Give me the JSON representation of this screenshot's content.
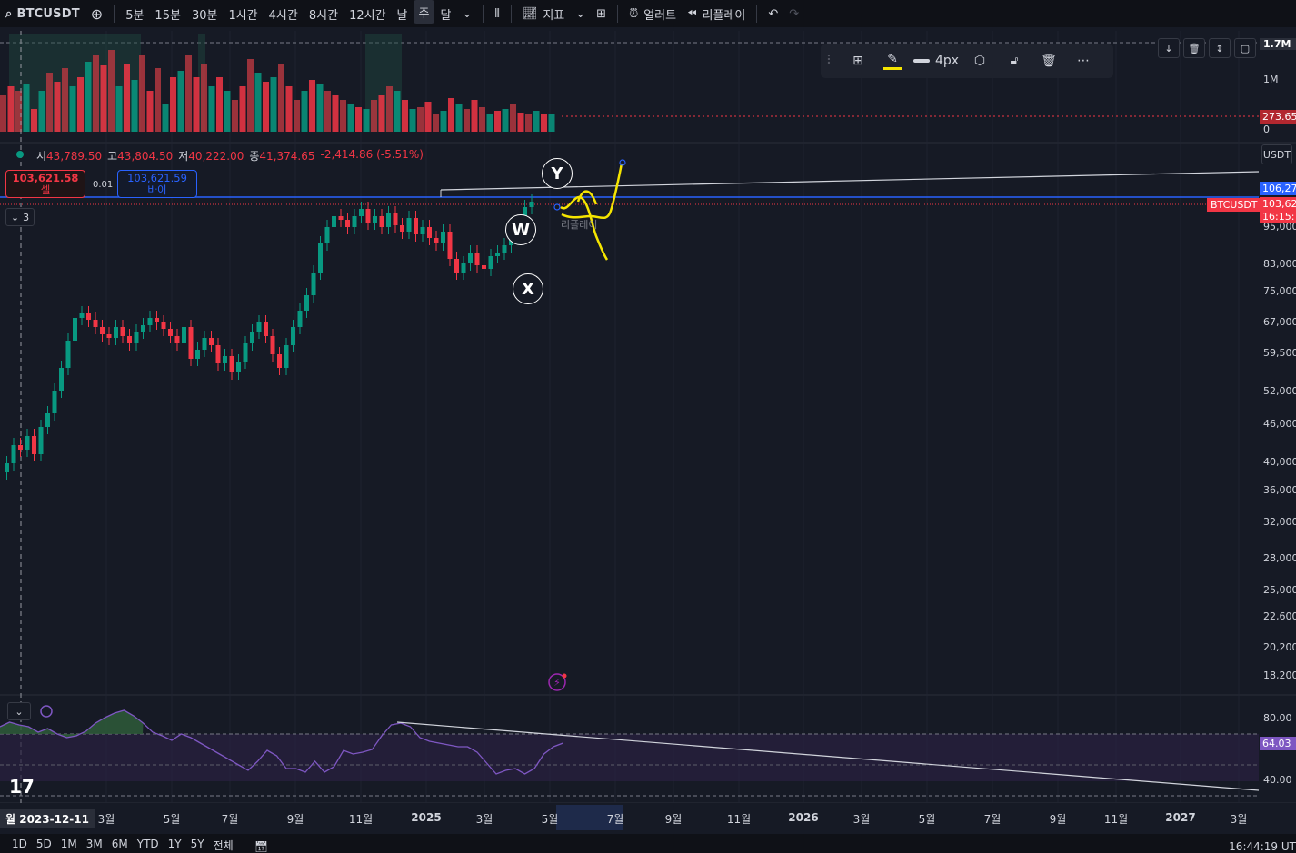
{
  "toolbar": {
    "symbol": "BTCUSDT",
    "intervals": [
      "5분",
      "15분",
      "30분",
      "1시간",
      "4시간",
      "8시간",
      "12시간",
      "날",
      "주",
      "달"
    ],
    "active_interval": "주",
    "indicators_label": "지표",
    "alert_label": "얼러트",
    "replay_label": "리플레이"
  },
  "legend": {
    "open_key": "시",
    "open": "43,789.50",
    "high_key": "고",
    "high": "43,804.50",
    "low_key": "저",
    "low": "40,222.00",
    "close_key": "종",
    "close": "41,374.65",
    "change": "-2,414.86 (-5.51%)"
  },
  "trade": {
    "sell_price": "103,621.58",
    "sell_label": "셀",
    "buy_price": "103,621.59",
    "buy_label": "바이",
    "spread": "0.01"
  },
  "drawing_toolbar": {
    "width_label": "4px"
  },
  "price_axis": {
    "currency": "USDT",
    "volume_labels": [
      "1.7M",
      "1M",
      "0"
    ],
    "volume_current": "273.65",
    "labels": [
      "95,000",
      "83,000",
      "75,000",
      "67,000",
      "59,500",
      "52,000",
      "46,000",
      "40,000",
      "36,000",
      "32,000",
      "28,000",
      "25,000",
      "22,600",
      "20,200",
      "18,200"
    ],
    "line_price": "106,27",
    "symbol_tag": "BTCUSDT",
    "current_price": "103,62",
    "countdown": "16:15:",
    "rsi_labels": [
      "80.00",
      "40.00"
    ],
    "rsi_current": "64.03"
  },
  "wave_labels": {
    "w": "W",
    "x": "X",
    "y": "Y"
  },
  "replay_text": "리플레이",
  "pane_count": "3",
  "time_axis": {
    "cursor_date": "월 2023-12-11",
    "labels": [
      "3월",
      "5월",
      "7월",
      "9월",
      "11월",
      "2025",
      "3월",
      "5월",
      "7월",
      "9월",
      "11월",
      "2026",
      "3월",
      "5월",
      "7월",
      "9월",
      "11월",
      "2027",
      "3월"
    ]
  },
  "bottom_bar": {
    "ranges": [
      "1D",
      "5D",
      "1M",
      "3M",
      "6M",
      "YTD",
      "1Y",
      "5Y",
      "전체"
    ],
    "clock": "16:44:19 UT"
  },
  "colors": {
    "up": "#089981",
    "down": "#f23645",
    "blue_line": "#2962ff",
    "drawing": "#f5e500",
    "rsi": "#7e57c2"
  }
}
